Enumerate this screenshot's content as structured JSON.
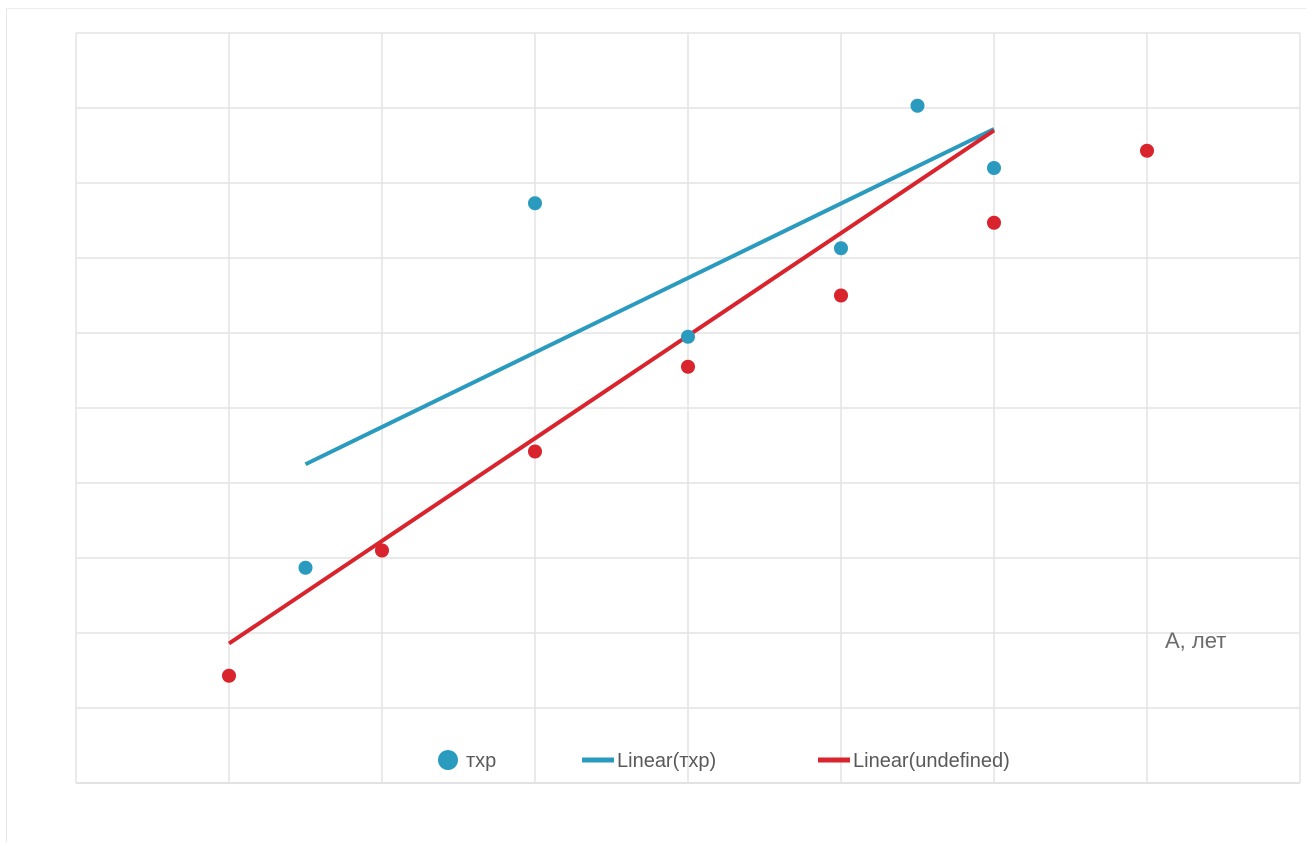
{
  "chart_data": {
    "type": "scatter",
    "title": "",
    "xlabel": "",
    "ylabel": "",
    "xlim": [
      0,
      7
    ],
    "ylim": [
      0,
      10
    ],
    "grid": true,
    "legend_position": "bottom",
    "annotations": [
      {
        "text": "А, лет"
      }
    ],
    "series": [
      {
        "name": "тхр",
        "type": "scatter",
        "color": "#2a9bbf",
        "points": [
          {
            "x": 1.5,
            "y": 2.87
          },
          {
            "x": 3.0,
            "y": 7.73
          },
          {
            "x": 4.0,
            "y": 5.95
          },
          {
            "x": 5.0,
            "y": 7.13
          },
          {
            "x": 5.5,
            "y": 9.03
          },
          {
            "x": 6.0,
            "y": 8.2
          }
        ]
      },
      {
        "name": "Linear(тхр)",
        "type": "trendline",
        "color": "#2a9bbf",
        "points": [
          {
            "x": 1.5,
            "y": 4.25
          },
          {
            "x": 6.0,
            "y": 8.72
          }
        ]
      },
      {
        "name": "",
        "type": "scatter",
        "color": "#d9232d",
        "points": [
          {
            "x": 1.0,
            "y": 1.43
          },
          {
            "x": 2.0,
            "y": 3.1
          },
          {
            "x": 3.0,
            "y": 4.42
          },
          {
            "x": 4.0,
            "y": 5.55
          },
          {
            "x": 5.0,
            "y": 6.5
          },
          {
            "x": 6.0,
            "y": 7.47
          },
          {
            "x": 7.0,
            "y": 8.43
          }
        ]
      },
      {
        "name": "Linear(undefined)",
        "type": "trendline",
        "color": "#d9232d",
        "points": [
          {
            "x": 1.0,
            "y": 1.86
          },
          {
            "x": 6.0,
            "y": 8.7
          }
        ]
      }
    ],
    "legend": [
      {
        "label": "тхр",
        "marker": "circle",
        "color": "#2a9bbf"
      },
      {
        "label": "Linear(тхр)",
        "marker": "line",
        "color": "#2a9bbf"
      },
      {
        "label": "Linear(undefined)",
        "marker": "line",
        "color": "#d9232d"
      }
    ]
  }
}
